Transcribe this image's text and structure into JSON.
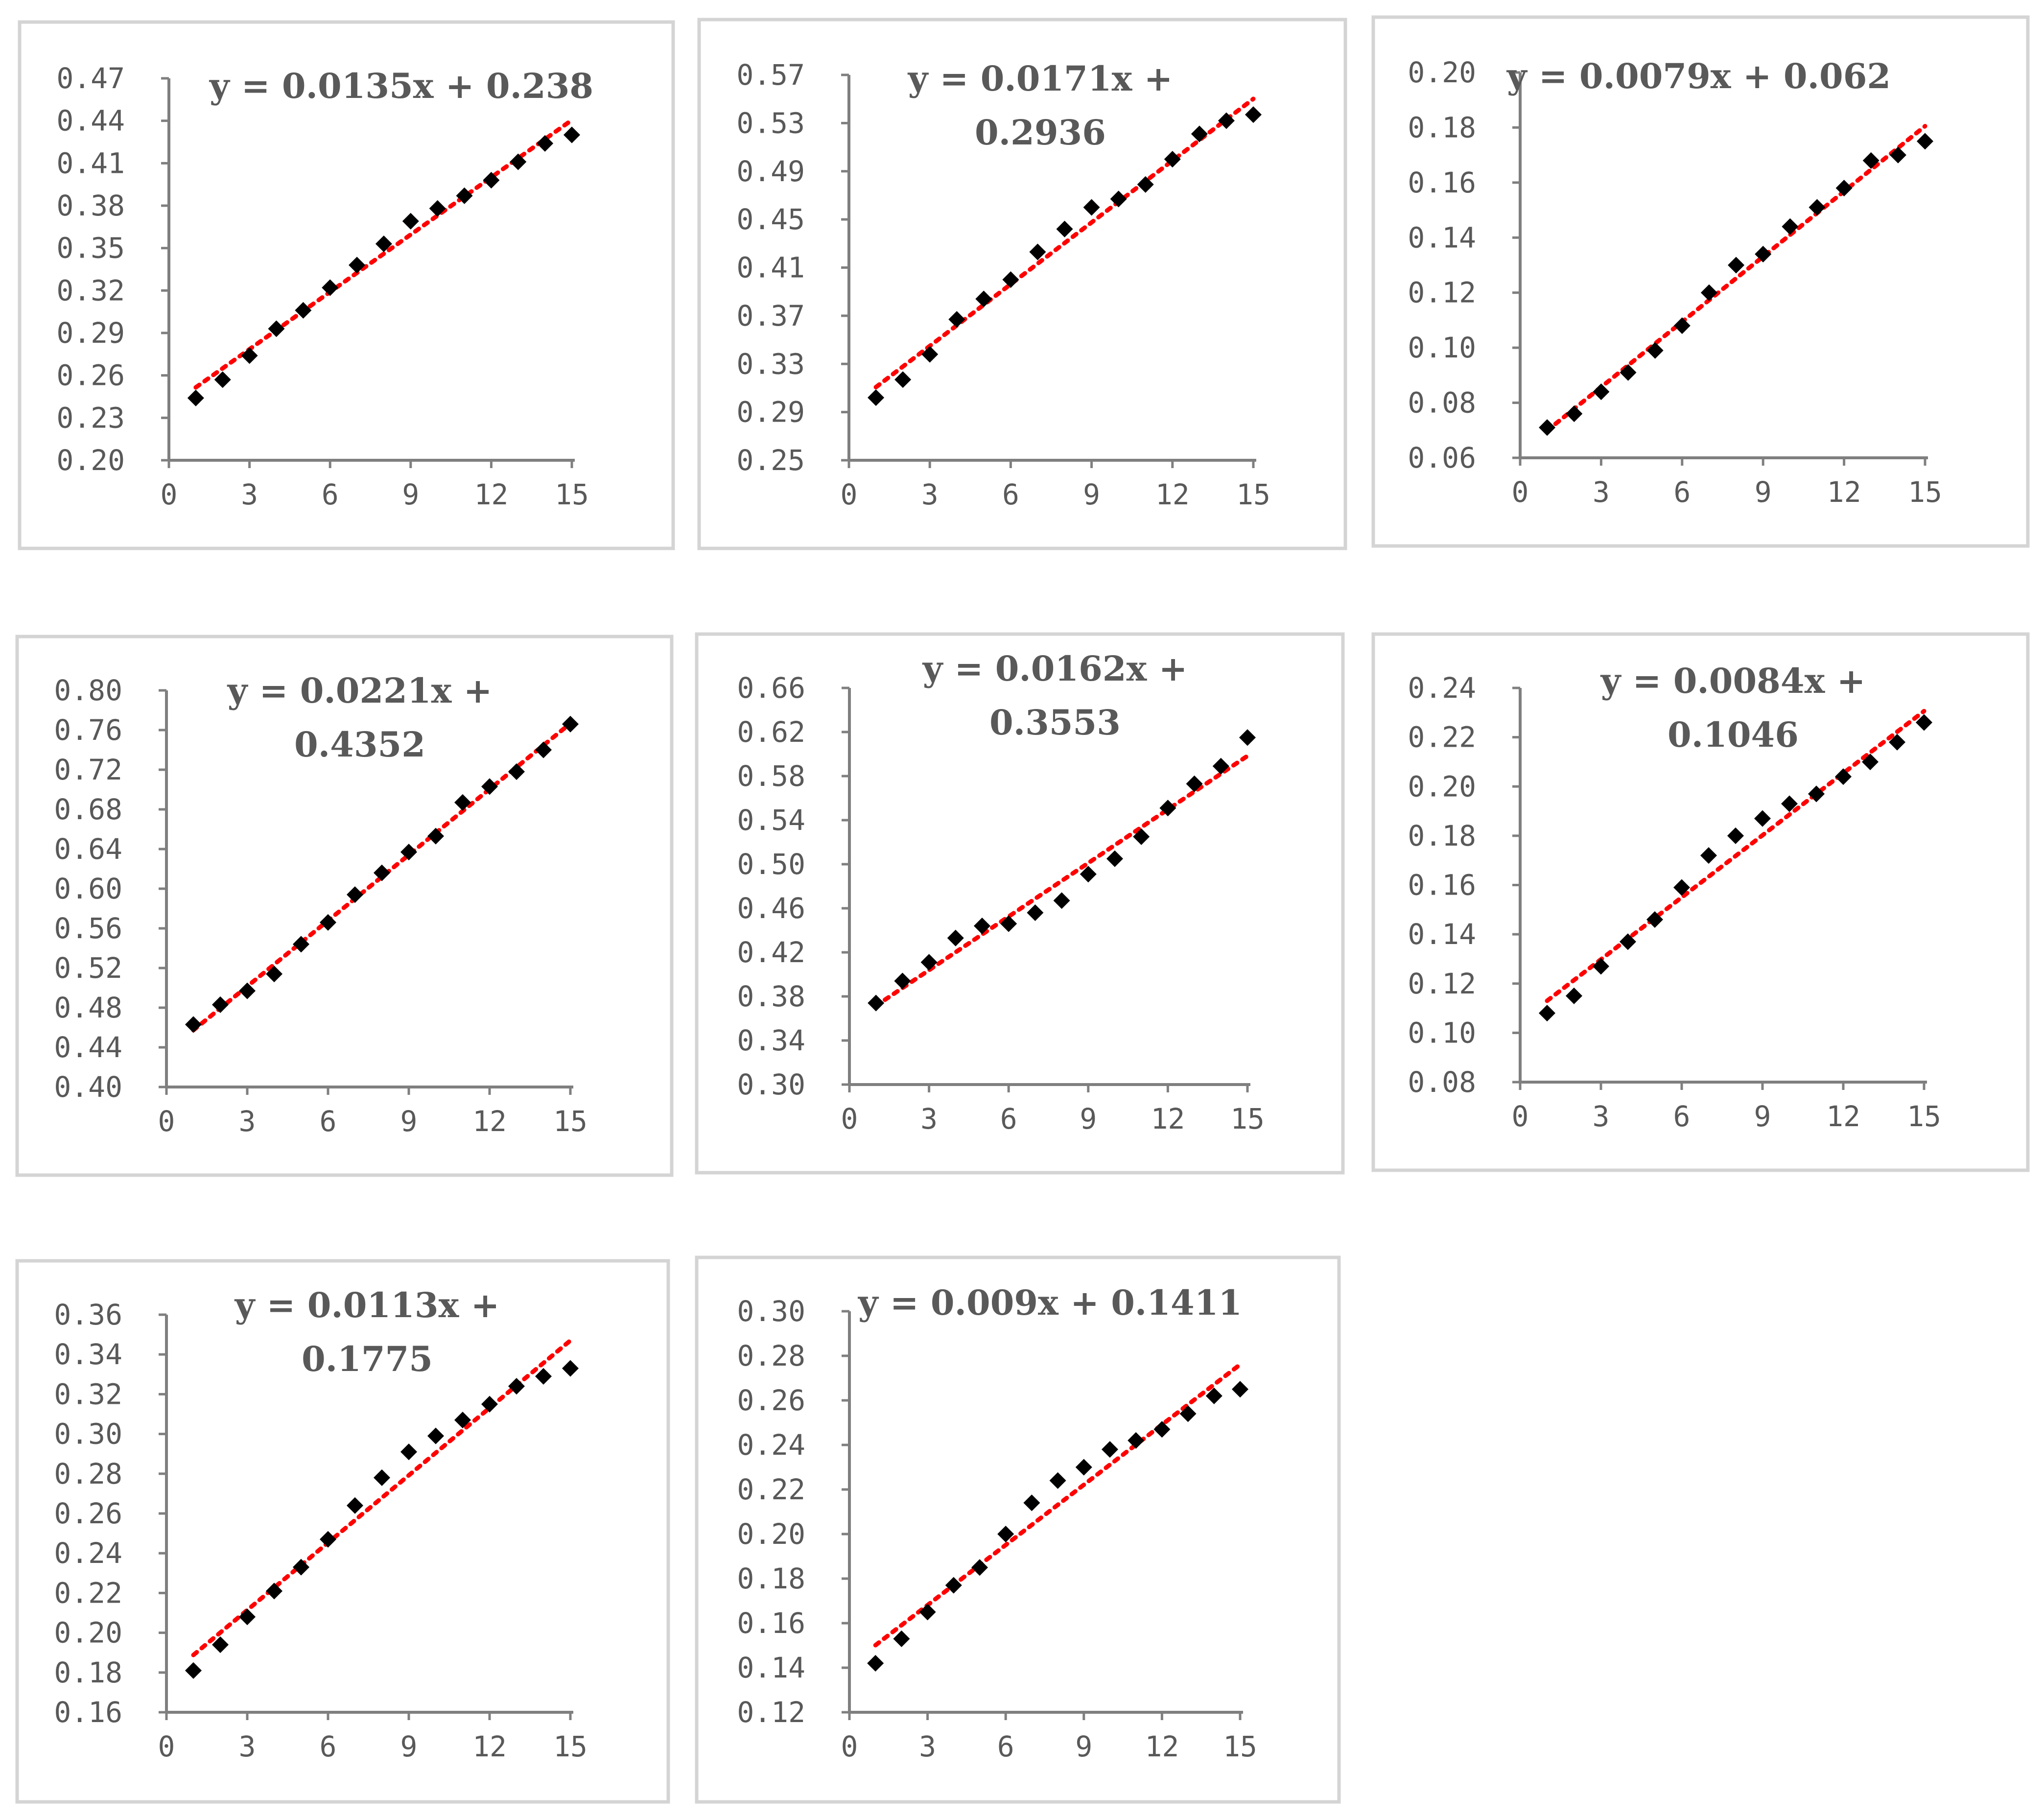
{
  "layout_note_free": true,
  "chart_data": [
    {
      "type": "scatter",
      "title": "",
      "trendline_label": [
        "y = 0.0135x + 0.238"
      ],
      "x": [
        1,
        2,
        3,
        4,
        5,
        6,
        7,
        8,
        9,
        10,
        11,
        12,
        13,
        14,
        15
      ],
      "y": [
        0.244,
        0.257,
        0.274,
        0.293,
        0.306,
        0.322,
        0.338,
        0.353,
        0.369,
        0.378,
        0.387,
        0.398,
        0.411,
        0.424,
        0.43
      ],
      "xlim": [
        0,
        15
      ],
      "ylim": [
        0.2,
        0.47
      ],
      "xticks": [
        "0",
        "3",
        "6",
        "9",
        "12",
        "15"
      ],
      "yticks": [
        "0.20",
        "0.23",
        "0.26",
        "0.29",
        "0.32",
        "0.35",
        "0.38",
        "0.41",
        "0.44",
        "0.47"
      ],
      "trendline": {
        "slope": 0.0135,
        "intercept": 0.238
      },
      "series_color": "#000000",
      "trendline_color": "#ff0000",
      "grid": false,
      "legend": "none"
    },
    {
      "type": "scatter",
      "title": "",
      "trendline_label": [
        "y = 0.0171x +",
        "0.2936"
      ],
      "x": [
        1,
        2,
        3,
        4,
        5,
        6,
        7,
        8,
        9,
        10,
        11,
        12,
        13,
        14,
        15
      ],
      "y": [
        0.302,
        0.317,
        0.338,
        0.367,
        0.384,
        0.4,
        0.423,
        0.442,
        0.46,
        0.467,
        0.479,
        0.5,
        0.521,
        0.532,
        0.537
      ],
      "xlim": [
        0,
        15
      ],
      "ylim": [
        0.25,
        0.57
      ],
      "xticks": [
        "0",
        "3",
        "6",
        "9",
        "12",
        "15"
      ],
      "yticks": [
        "0.25",
        "0.29",
        "0.33",
        "0.37",
        "0.41",
        "0.45",
        "0.49",
        "0.53",
        "0.57"
      ],
      "trendline": {
        "slope": 0.0171,
        "intercept": 0.2936
      },
      "series_color": "#000000",
      "trendline_color": "#ff0000",
      "grid": false,
      "legend": "none"
    },
    {
      "type": "scatter",
      "title": "",
      "trendline_label": [
        "y = 0.0079x + 0.062"
      ],
      "x": [
        1,
        2,
        3,
        4,
        5,
        6,
        7,
        8,
        9,
        10,
        11,
        12,
        13,
        14,
        15
      ],
      "y": [
        0.071,
        0.076,
        0.084,
        0.091,
        0.099,
        0.108,
        0.12,
        0.13,
        0.134,
        0.144,
        0.151,
        0.158,
        0.168,
        0.17,
        0.175
      ],
      "xlim": [
        0,
        15
      ],
      "ylim": [
        0.06,
        0.2
      ],
      "xticks": [
        "0",
        "3",
        "6",
        "9",
        "12",
        "15"
      ],
      "yticks": [
        "0.06",
        "0.08",
        "0.10",
        "0.12",
        "0.14",
        "0.16",
        "0.18",
        "0.20"
      ],
      "trendline": {
        "slope": 0.0079,
        "intercept": 0.062
      },
      "series_color": "#000000",
      "trendline_color": "#ff0000",
      "grid": false,
      "legend": "none"
    },
    {
      "type": "scatter",
      "title": "",
      "trendline_label": [
        "y = 0.0221x +",
        "0.4352"
      ],
      "x": [
        1,
        2,
        3,
        4,
        5,
        6,
        7,
        8,
        9,
        10,
        11,
        12,
        13,
        14,
        15
      ],
      "y": [
        0.463,
        0.483,
        0.497,
        0.514,
        0.544,
        0.566,
        0.594,
        0.616,
        0.637,
        0.653,
        0.687,
        0.703,
        0.718,
        0.74,
        0.766
      ],
      "xlim": [
        0,
        15
      ],
      "ylim": [
        0.4,
        0.8
      ],
      "xticks": [
        "0",
        "3",
        "6",
        "9",
        "12",
        "15"
      ],
      "yticks": [
        "0.40",
        "0.44",
        "0.48",
        "0.52",
        "0.56",
        "0.60",
        "0.64",
        "0.68",
        "0.72",
        "0.76",
        "0.80"
      ],
      "trendline": {
        "slope": 0.0221,
        "intercept": 0.4352
      },
      "series_color": "#000000",
      "trendline_color": "#ff0000",
      "grid": false,
      "legend": "none"
    },
    {
      "type": "scatter",
      "title": "",
      "trendline_label": [
        "y = 0.0162x +",
        "0.3553"
      ],
      "x": [
        1,
        2,
        3,
        4,
        5,
        6,
        7,
        8,
        9,
        10,
        11,
        12,
        13,
        14,
        15
      ],
      "y": [
        0.374,
        0.394,
        0.411,
        0.433,
        0.444,
        0.446,
        0.456,
        0.467,
        0.491,
        0.505,
        0.525,
        0.551,
        0.573,
        0.589,
        0.615
      ],
      "xlim": [
        0,
        15
      ],
      "ylim": [
        0.3,
        0.66
      ],
      "xticks": [
        "0",
        "3",
        "6",
        "9",
        "12",
        "15"
      ],
      "yticks": [
        "0.30",
        "0.34",
        "0.38",
        "0.42",
        "0.46",
        "0.50",
        "0.54",
        "0.58",
        "0.62",
        "0.66"
      ],
      "trendline": {
        "slope": 0.0162,
        "intercept": 0.3553
      },
      "series_color": "#000000",
      "trendline_color": "#ff0000",
      "grid": false,
      "legend": "none"
    },
    {
      "type": "scatter",
      "title": "",
      "trendline_label": [
        "y = 0.0084x +",
        "0.1046"
      ],
      "x": [
        1,
        2,
        3,
        4,
        5,
        6,
        7,
        8,
        9,
        10,
        11,
        12,
        13,
        14,
        15
      ],
      "y": [
        0.108,
        0.115,
        0.127,
        0.137,
        0.146,
        0.159,
        0.172,
        0.18,
        0.187,
        0.193,
        0.197,
        0.204,
        0.21,
        0.218,
        0.226
      ],
      "xlim": [
        0,
        15
      ],
      "ylim": [
        0.08,
        0.24
      ],
      "xticks": [
        "0",
        "3",
        "6",
        "9",
        "12",
        "15"
      ],
      "yticks": [
        "0.08",
        "0.10",
        "0.12",
        "0.14",
        "0.16",
        "0.18",
        "0.20",
        "0.22",
        "0.24"
      ],
      "trendline": {
        "slope": 0.0084,
        "intercept": 0.1046
      },
      "series_color": "#000000",
      "trendline_color": "#ff0000",
      "grid": false,
      "legend": "none"
    },
    {
      "type": "scatter",
      "title": "",
      "trendline_label": [
        "y = 0.0113x +",
        "0.1775"
      ],
      "x": [
        1,
        2,
        3,
        4,
        5,
        6,
        7,
        8,
        9,
        10,
        11,
        12,
        13,
        14,
        15
      ],
      "y": [
        0.181,
        0.194,
        0.208,
        0.221,
        0.233,
        0.247,
        0.264,
        0.278,
        0.291,
        0.299,
        0.307,
        0.315,
        0.324,
        0.329,
        0.333
      ],
      "xlim": [
        0,
        15
      ],
      "ylim": [
        0.16,
        0.36
      ],
      "xticks": [
        "0",
        "3",
        "6",
        "9",
        "12",
        "15"
      ],
      "yticks": [
        "0.16",
        "0.18",
        "0.20",
        "0.22",
        "0.24",
        "0.26",
        "0.28",
        "0.30",
        "0.32",
        "0.34",
        "0.36"
      ],
      "trendline": {
        "slope": 0.0113,
        "intercept": 0.1775
      },
      "series_color": "#000000",
      "trendline_color": "#ff0000",
      "grid": false,
      "legend": "none"
    },
    {
      "type": "scatter",
      "title": "",
      "trendline_label": [
        "y = 0.009x + 0.1411"
      ],
      "x": [
        1,
        2,
        3,
        4,
        5,
        6,
        7,
        8,
        9,
        10,
        11,
        12,
        13,
        14,
        15
      ],
      "y": [
        0.142,
        0.153,
        0.165,
        0.177,
        0.185,
        0.2,
        0.214,
        0.224,
        0.23,
        0.238,
        0.242,
        0.247,
        0.254,
        0.262,
        0.265
      ],
      "xlim": [
        0,
        15
      ],
      "ylim": [
        0.12,
        0.3
      ],
      "xticks": [
        "0",
        "3",
        "6",
        "9",
        "12",
        "15"
      ],
      "yticks": [
        "0.12",
        "0.14",
        "0.16",
        "0.18",
        "0.20",
        "0.22",
        "0.24",
        "0.26",
        "0.28",
        "0.30"
      ],
      "trendline": {
        "slope": 0.009,
        "intercept": 0.1411
      },
      "series_color": "#000000",
      "trendline_color": "#ff0000",
      "grid": false,
      "legend": "none"
    }
  ]
}
